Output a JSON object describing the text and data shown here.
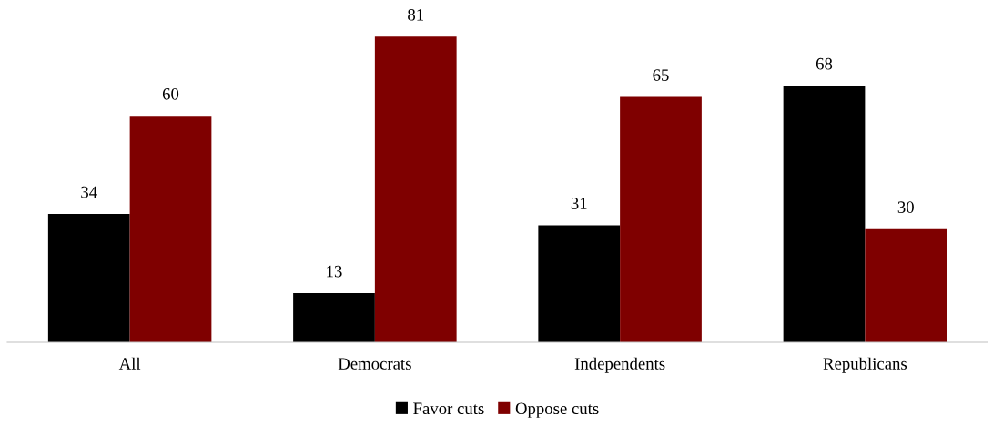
{
  "chart_data": {
    "type": "bar",
    "categories": [
      "All",
      "Democrats",
      "Independents",
      "Republicans"
    ],
    "series": [
      {
        "name": "Favor cuts",
        "color": "#000000",
        "values": [
          34,
          13,
          31,
          68
        ]
      },
      {
        "name": "Oppose cuts",
        "color": "#7f0000",
        "values": [
          60,
          81,
          65,
          30
        ]
      }
    ],
    "data_labels": true,
    "legend": "bottom",
    "grid": false
  }
}
